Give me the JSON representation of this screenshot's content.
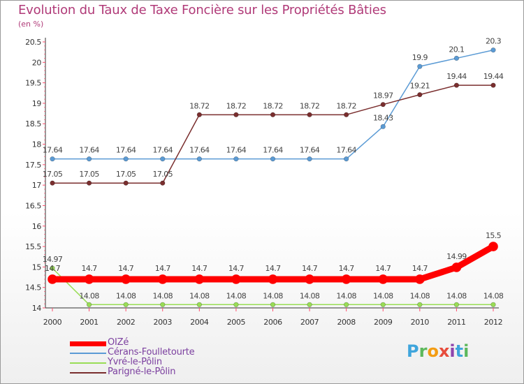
{
  "page": {
    "title": "Evolution du Taux de Taxe Foncière sur les Propriétés Bâties",
    "unit_label": "(en %)"
  },
  "logo": {
    "text": "Proxiti",
    "letters": [
      "P",
      "r",
      "o",
      "x",
      "i",
      "t",
      "i"
    ],
    "colors": [
      "#3fa5dc",
      "#5cb85c",
      "#f39c12",
      "#e74c3c",
      "#8e44ad",
      "#3fa5dc",
      "#5cb85c"
    ]
  },
  "chart_data": {
    "type": "line",
    "title": "Evolution du Taux de Taxe Foncière sur les Propriétés Bâties",
    "ylabel": "(en %)",
    "xlabel": "",
    "ylim": [
      14,
      20.5
    ],
    "yticks": [
      14,
      14.5,
      15,
      15.5,
      16,
      16.5,
      17,
      17.5,
      18,
      18.5,
      19,
      19.5,
      20,
      20.5
    ],
    "ytick_labels": [
      "14",
      "14.5",
      "15",
      "15.5",
      "16",
      "16.5",
      "17",
      "17.5",
      "18",
      "18.5",
      "19",
      "19.5",
      "20",
      "20.5"
    ],
    "x": [
      2000,
      2001,
      2002,
      2003,
      2004,
      2005,
      2006,
      2007,
      2008,
      2009,
      2010,
      2011,
      2012
    ],
    "x_labels": [
      "2000",
      "2001",
      "2002",
      "2003",
      "2004",
      "2005",
      "2006",
      "2007",
      "2008",
      "2009",
      "2010",
      "2011",
      "2012"
    ],
    "grid": false,
    "legend_position": "bottom-left",
    "series": [
      {
        "name": "OIZé",
        "color": "#ff0000",
        "values": [
          14.7,
          14.7,
          14.7,
          14.7,
          14.7,
          14.7,
          14.7,
          14.7,
          14.7,
          14.7,
          14.7,
          14.99,
          15.5
        ],
        "labels": [
          "14.7",
          "14.7",
          "14.7",
          "14.7",
          "14.7",
          "14.7",
          "14.7",
          "14.7",
          "14.7",
          "14.7",
          "14.7",
          "14.99",
          "15.5"
        ],
        "emphasis": true
      },
      {
        "name": "Cérans-Foulletourte",
        "color": "#5b9bd5",
        "values": [
          17.64,
          17.64,
          17.64,
          17.64,
          17.64,
          17.64,
          17.64,
          17.64,
          17.64,
          18.43,
          19.9,
          20.1,
          20.3
        ],
        "labels": [
          "17.64",
          "17.64",
          "17.64",
          "17.64",
          "17.64",
          "17.64",
          "17.64",
          "17.64",
          "17.64",
          "18.43",
          "19.9",
          "20.1",
          "20.3"
        ],
        "emphasis": false
      },
      {
        "name": "Yvré-le-Pôlin",
        "color": "#99dd55",
        "values": [
          14.97,
          14.08,
          14.08,
          14.08,
          14.08,
          14.08,
          14.08,
          14.08,
          14.08,
          14.08,
          14.08,
          14.08,
          14.08
        ],
        "labels": [
          "14.97",
          "14.08",
          "14.08",
          "14.08",
          "14.08",
          "14.08",
          "14.08",
          "14.08",
          "14.08",
          "14.08",
          "14.08",
          "14.08",
          "14.08"
        ],
        "emphasis": false
      },
      {
        "name": "Parigné-le-Pôlin",
        "color": "#7a2e2e",
        "values": [
          17.05,
          17.05,
          17.05,
          17.05,
          18.72,
          18.72,
          18.72,
          18.72,
          18.72,
          18.97,
          19.21,
          19.44,
          19.44
        ],
        "labels": [
          "17.05",
          "17.05",
          "17.05",
          "17.05",
          "18.72",
          "18.72",
          "18.72",
          "18.72",
          "18.72",
          "18.97",
          "19.21",
          "19.44",
          "19.44"
        ],
        "emphasis": false
      }
    ]
  }
}
